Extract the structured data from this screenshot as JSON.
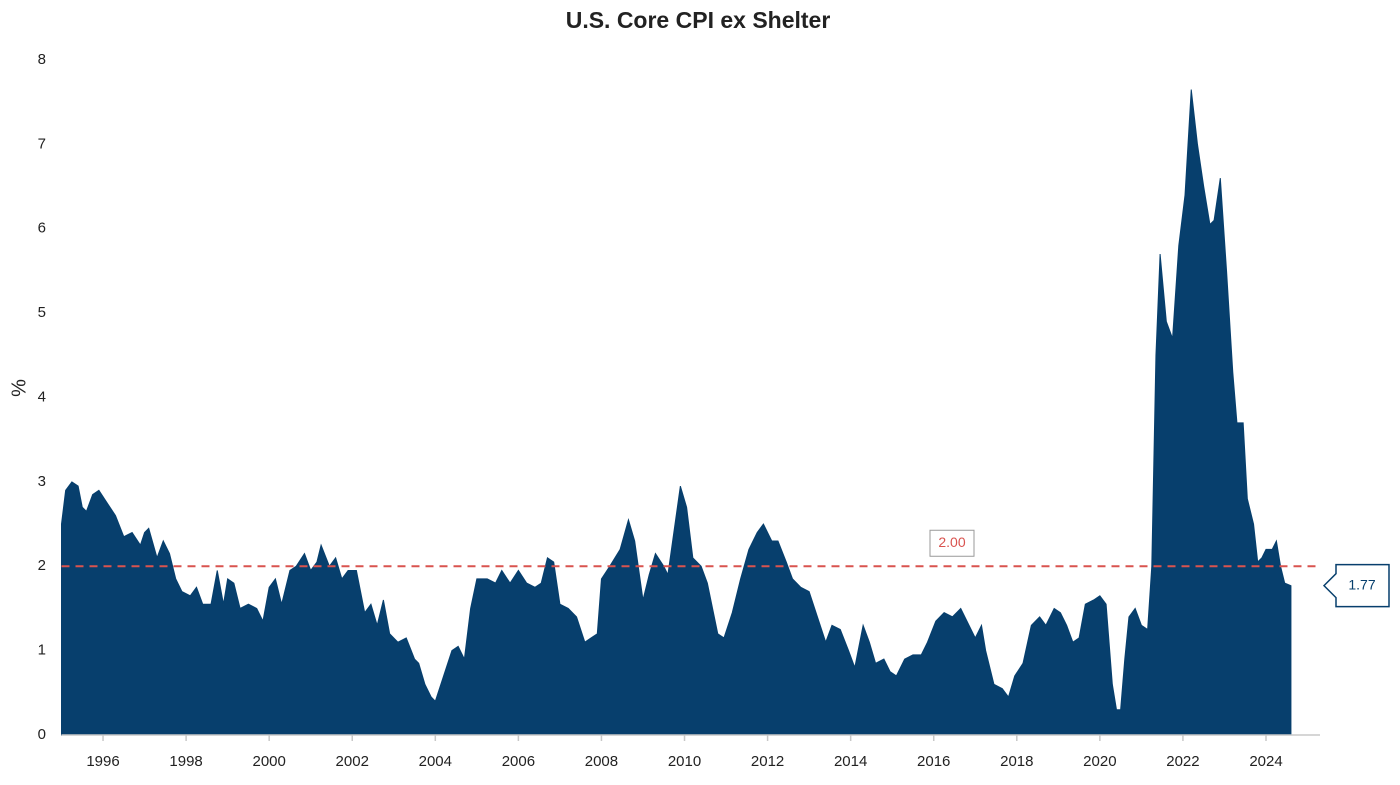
{
  "chart_data": {
    "type": "area",
    "title": "U.S. Core CPI ex Shelter",
    "y_label": "%",
    "color": "#073f6d",
    "x": [
      1995.0,
      1995.1,
      1995.25,
      1995.4,
      1995.5,
      1995.6,
      1995.75,
      1995.9,
      1996.1,
      1996.3,
      1996.5,
      1996.7,
      1996.9,
      1997.0,
      1997.1,
      1997.3,
      1997.45,
      1997.6,
      1997.75,
      1997.9,
      1998.1,
      1998.25,
      1998.4,
      1998.6,
      1998.75,
      1998.9,
      1999.0,
      1999.15,
      1999.3,
      1999.5,
      1999.7,
      1999.85,
      2000.0,
      2000.15,
      2000.3,
      2000.5,
      2000.65,
      2000.85,
      2001.0,
      2001.15,
      2001.25,
      2001.45,
      2001.6,
      2001.75,
      2001.9,
      2002.1,
      2002.3,
      2002.45,
      2002.6,
      2002.75,
      2002.9,
      2003.1,
      2003.3,
      2003.5,
      2003.6,
      2003.75,
      2003.9,
      2004.0,
      2004.2,
      2004.4,
      2004.55,
      2004.7,
      2004.85,
      2005.0,
      2005.25,
      2005.45,
      2005.6,
      2005.8,
      2006.0,
      2006.2,
      2006.4,
      2006.55,
      2006.7,
      2006.85,
      2007.0,
      2007.2,
      2007.4,
      2007.6,
      2007.75,
      2007.9,
      2008.0,
      2008.2,
      2008.45,
      2008.65,
      2008.8,
      2009.0,
      2009.15,
      2009.3,
      2009.5,
      2009.6,
      2009.8,
      2009.9,
      2010.05,
      2010.2,
      2010.4,
      2010.55,
      2010.8,
      2010.95,
      2011.15,
      2011.35,
      2011.55,
      2011.75,
      2011.9,
      2012.1,
      2012.25,
      2012.45,
      2012.6,
      2012.8,
      2013.0,
      2013.2,
      2013.4,
      2013.55,
      2013.75,
      2013.95,
      2014.1,
      2014.3,
      2014.45,
      2014.6,
      2014.8,
      2014.95,
      2015.1,
      2015.3,
      2015.5,
      2015.7,
      2015.85,
      2016.05,
      2016.25,
      2016.45,
      2016.65,
      2016.8,
      2017.0,
      2017.15,
      2017.25,
      2017.45,
      2017.65,
      2017.8,
      2017.95,
      2018.15,
      2018.35,
      2018.55,
      2018.7,
      2018.9,
      2019.05,
      2019.2,
      2019.35,
      2019.5,
      2019.65,
      2019.85,
      2020.0,
      2020.15,
      2020.3,
      2020.4,
      2020.5,
      2020.6,
      2020.7,
      2020.85,
      2021.0,
      2021.15,
      2021.25,
      2021.35,
      2021.45,
      2021.6,
      2021.75,
      2021.9,
      2022.05,
      2022.2,
      2022.35,
      2022.5,
      2022.65,
      2022.75,
      2022.9,
      2023.05,
      2023.2,
      2023.3,
      2023.45,
      2023.55,
      2023.7,
      2023.8,
      2023.9,
      2024.0,
      2024.15,
      2024.25,
      2024.35,
      2024.45,
      2024.6
    ],
    "values": [
      2.5,
      2.9,
      3.0,
      2.95,
      2.7,
      2.65,
      2.85,
      2.9,
      2.75,
      2.6,
      2.35,
      2.4,
      2.25,
      2.4,
      2.45,
      2.1,
      2.3,
      2.15,
      1.85,
      1.7,
      1.65,
      1.75,
      1.55,
      1.55,
      1.95,
      1.55,
      1.85,
      1.8,
      1.5,
      1.55,
      1.5,
      1.35,
      1.75,
      1.85,
      1.55,
      1.95,
      2.0,
      2.15,
      1.95,
      2.05,
      2.25,
      2.0,
      2.1,
      1.85,
      1.95,
      1.95,
      1.45,
      1.55,
      1.3,
      1.6,
      1.2,
      1.1,
      1.15,
      0.9,
      0.85,
      0.6,
      0.45,
      0.4,
      0.7,
      1.0,
      1.05,
      0.9,
      1.5,
      1.85,
      1.85,
      1.8,
      1.95,
      1.8,
      1.95,
      1.8,
      1.75,
      1.8,
      2.1,
      2.05,
      1.55,
      1.5,
      1.4,
      1.1,
      1.15,
      1.2,
      1.85,
      2.0,
      2.2,
      2.55,
      2.3,
      1.6,
      1.9,
      2.15,
      2.0,
      1.9,
      2.6,
      2.95,
      2.7,
      2.1,
      2.0,
      1.8,
      1.2,
      1.15,
      1.45,
      1.85,
      2.2,
      2.4,
      2.5,
      2.3,
      2.3,
      2.05,
      1.85,
      1.75,
      1.7,
      1.4,
      1.1,
      1.3,
      1.25,
      1.0,
      0.8,
      1.3,
      1.1,
      0.85,
      0.9,
      0.75,
      0.7,
      0.9,
      0.95,
      0.95,
      1.1,
      1.35,
      1.45,
      1.4,
      1.5,
      1.35,
      1.15,
      1.3,
      1.0,
      0.6,
      0.55,
      0.45,
      0.7,
      0.85,
      1.3,
      1.4,
      1.3,
      1.5,
      1.45,
      1.3,
      1.1,
      1.15,
      1.55,
      1.6,
      1.65,
      1.55,
      0.6,
      0.3,
      0.3,
      0.9,
      1.4,
      1.5,
      1.3,
      1.25,
      2.0,
      4.5,
      5.7,
      4.9,
      4.7,
      5.8,
      6.4,
      7.65,
      7.0,
      6.5,
      6.05,
      6.1,
      6.6,
      5.5,
      4.3,
      3.7,
      3.7,
      2.8,
      2.5,
      2.05,
      2.1,
      2.2,
      2.2,
      2.3,
      2.0,
      1.8,
      1.77
    ],
    "xlim": [
      1995.0,
      2025.3
    ],
    "xticks": [
      1996,
      1998,
      2000,
      2002,
      2004,
      2006,
      2008,
      2010,
      2012,
      2014,
      2016,
      2018,
      2020,
      2022,
      2024
    ],
    "ylim": [
      0,
      8
    ],
    "yticks": [
      0,
      1,
      2,
      3,
      4,
      5,
      6,
      7,
      8
    ],
    "reference_line": {
      "value": 2,
      "label": "2.00",
      "color": "#d9534f"
    }
  }
}
